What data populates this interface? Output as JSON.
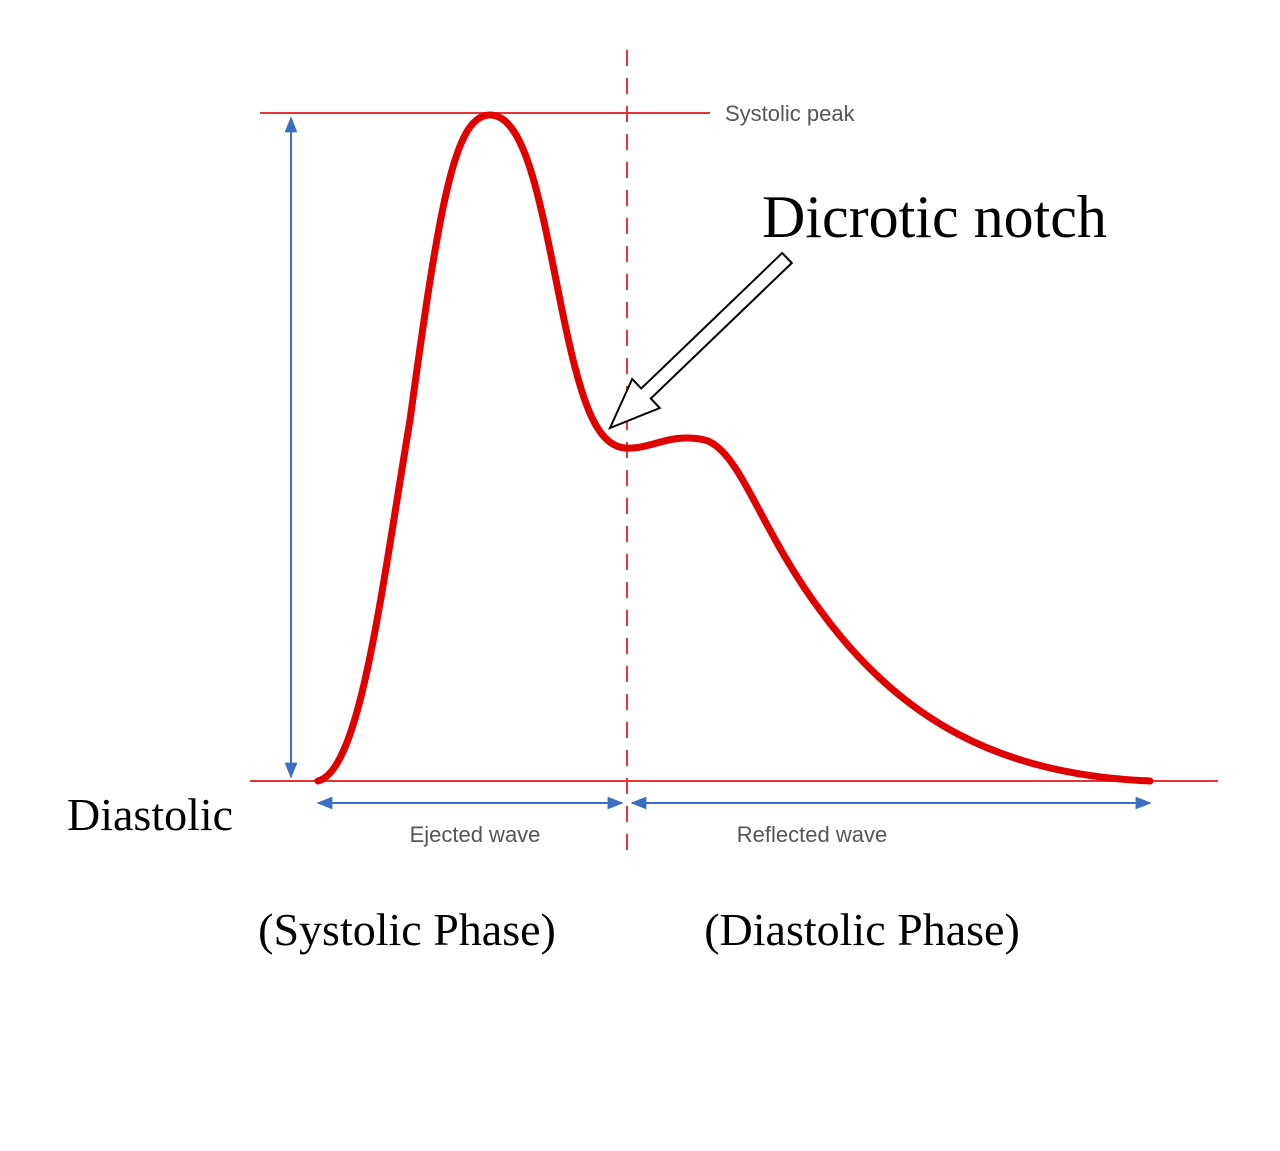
{
  "labels": {
    "systolic_peak": "Systolic peak",
    "dicrotic_notch": "Dicrotic notch",
    "diastolic": "Diastolic",
    "ejected_wave": "Ejected wave",
    "reflected_wave": "Reflected wave",
    "systolic_phase": "(Systolic Phase)",
    "diastolic_phase": "(Diastolic Phase)"
  }
}
